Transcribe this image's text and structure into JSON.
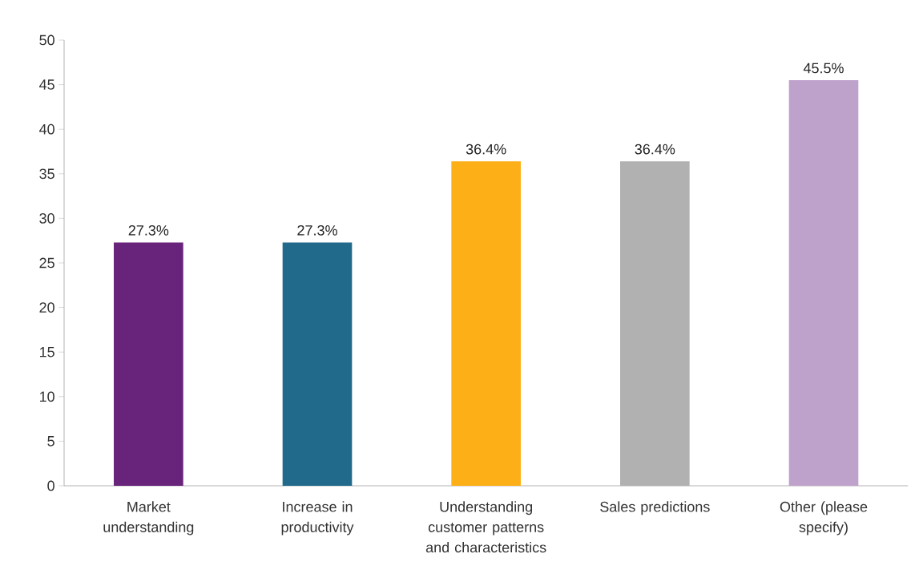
{
  "chart_data": {
    "type": "bar",
    "categories": [
      "Market understanding",
      "Increase in productivity",
      "Understanding customer patterns and characteristics",
      "Sales predictions",
      "Other (please specify)"
    ],
    "values": [
      27.3,
      27.3,
      36.4,
      36.4,
      45.5
    ],
    "value_labels": [
      "27.3%",
      "27.3%",
      "36.4%",
      "36.4%",
      "45.5%"
    ],
    "colors": [
      "#68237b",
      "#226a8c",
      "#fcaf17",
      "#b1b1b1",
      "#bfa2cc"
    ],
    "ylim": [
      0,
      50
    ],
    "yticks": [
      0,
      5,
      10,
      15,
      20,
      25,
      30,
      35,
      40,
      45,
      50
    ],
    "grid": false
  }
}
